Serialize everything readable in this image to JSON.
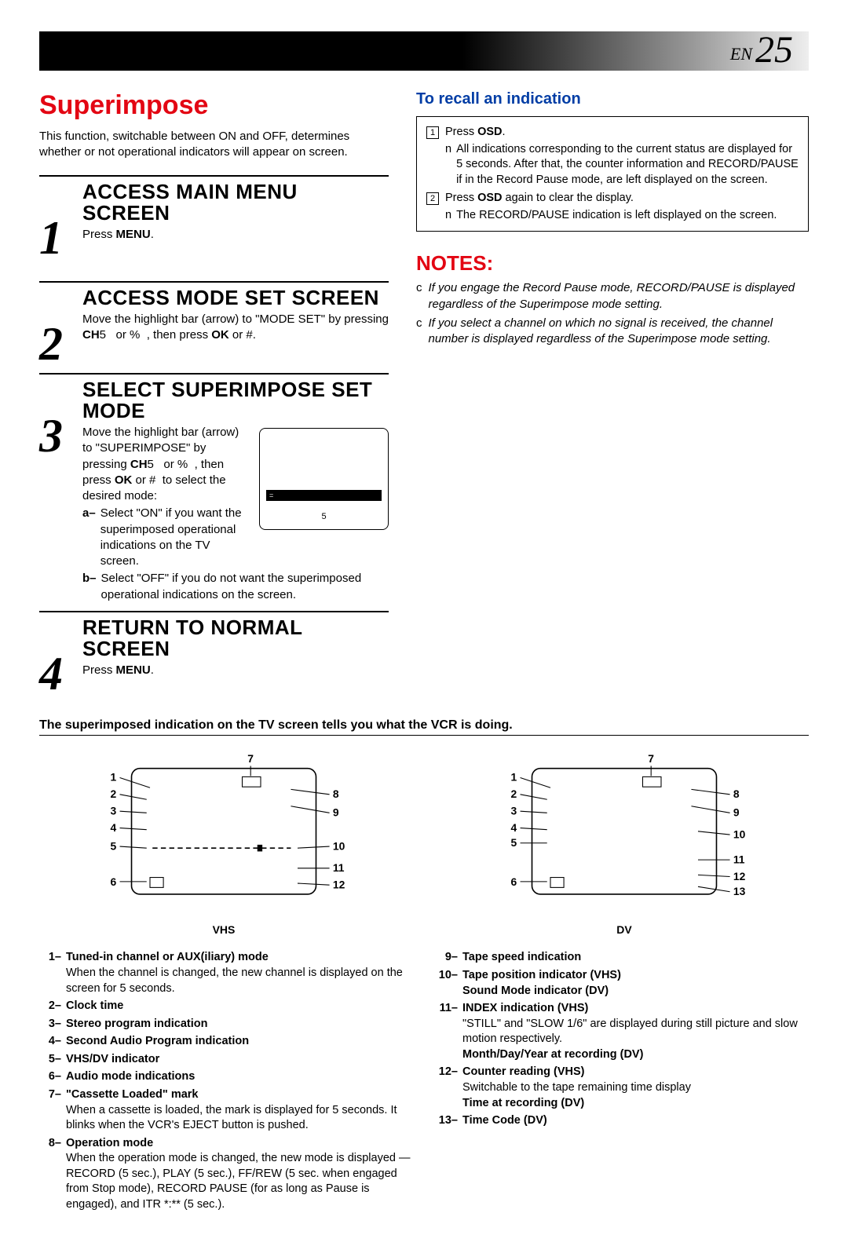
{
  "page": {
    "prefix": "EN",
    "number": "25"
  },
  "title": "Superimpose",
  "intro": "This function, switchable between ON and OFF, determines whether or not operational indicators will appear on screen.",
  "steps": [
    {
      "num": "1",
      "title": "ACCESS MAIN MENU SCREEN",
      "body_html": "Press <b>MENU</b>."
    },
    {
      "num": "2",
      "title": "ACCESS MODE SET SCREEN",
      "body_html": "Move the highlight bar (arrow) to \"MODE SET\" by pressing <b>CH</b>5   or %  , then press <b>OK</b> or #."
    },
    {
      "num": "3",
      "title": "SELECT SUPERIMPOSE SET MODE",
      "body_html": "Move the highlight bar (arrow) to \"SUPERIMPOSE\" by pressing <b>CH</b>5   or %  , then press <b>OK</b> or #  to select the desired mode:",
      "sub": [
        {
          "label": "a–",
          "text": "Select \"ON\" if you want the superimposed operational indications on the TV screen."
        },
        {
          "label": "b–",
          "text": "Select \"OFF\" if you do not want the superimposed operational indications on the screen."
        }
      ],
      "tv": {
        "highlight": "=",
        "num": "5"
      }
    },
    {
      "num": "4",
      "title": "RETURN TO NORMAL SCREEN",
      "body_html": "Press <b>MENU</b>."
    }
  ],
  "recall": {
    "title": "To recall an indication",
    "items": [
      {
        "num": "1",
        "text_html": "Press <b>OSD</b>.",
        "bullets": [
          "All indications corresponding to the current status are displayed for 5 seconds. After that, the counter information and RECORD/PAUSE if in the Record Pause mode, are left displayed on the screen."
        ]
      },
      {
        "num": "2",
        "text_html": "Press <b>OSD</b> again to clear the display.",
        "bullets": [
          "The RECORD/PAUSE indication is left displayed on the screen."
        ]
      }
    ]
  },
  "notes": {
    "title": "NOTES:",
    "items": [
      "If you engage the Record Pause mode, RECORD/PAUSE is displayed regardless of the Superimpose mode setting.",
      "If you select a channel on which no signal is received, the channel number is displayed regardless of the Superimpose mode setting."
    ]
  },
  "bottom": {
    "heading": "The superimposed indication on the TV screen tells you what the VCR is doing.",
    "diagrams": [
      {
        "label": "VHS",
        "count": 12
      },
      {
        "label": "DV",
        "count": 13
      }
    ],
    "legend_left": [
      {
        "n": "1–",
        "lbl": "Tuned-in channel or AUX(iliary) mode",
        "desc": "When the channel is changed, the new channel is displayed on the screen for 5 seconds."
      },
      {
        "n": "2–",
        "lbl": "Clock time",
        "desc": ""
      },
      {
        "n": "3–",
        "lbl": "Stereo program indication",
        "desc": ""
      },
      {
        "n": "4–",
        "lbl": "Second Audio Program indication",
        "desc": ""
      },
      {
        "n": "5–",
        "lbl": "VHS/DV indicator",
        "desc": ""
      },
      {
        "n": "6–",
        "lbl": "Audio mode indications",
        "desc": ""
      },
      {
        "n": "7–",
        "lbl": "\"Cassette Loaded\" mark",
        "desc": "When a cassette is loaded, the mark is displayed for 5 seconds. It blinks when the VCR's EJECT button is pushed."
      },
      {
        "n": "8–",
        "lbl": "Operation mode",
        "desc": "When the operation mode is changed, the new mode is displayed — RECORD (5 sec.), PLAY (5 sec.), FF/REW (5 sec. when engaged from Stop mode), RECORD PAUSE (for as long as Pause is engaged), and ITR *:** (5 sec.)."
      }
    ],
    "legend_right": [
      {
        "n": "9–",
        "lbl": "Tape speed indication",
        "desc": ""
      },
      {
        "n": "10–",
        "lbl": "Tape position indicator (VHS)",
        "desc": "",
        "lbl2": "Sound Mode indicator (DV)"
      },
      {
        "n": "11–",
        "lbl": "INDEX indication (VHS)",
        "desc": "\"STILL\" and \"SLOW 1/6\" are displayed during still picture and slow motion respectively.",
        "lbl2": "Month/Day/Year at recording (DV)"
      },
      {
        "n": "12–",
        "lbl": "Counter reading (VHS)",
        "desc": "Switchable to the tape remaining time display",
        "lbl2": "Time at recording (DV)"
      },
      {
        "n": "13–",
        "lbl": "Time Code (DV)",
        "desc": ""
      }
    ]
  },
  "colors": {
    "red": "#e30613",
    "blue": "#003da5"
  }
}
